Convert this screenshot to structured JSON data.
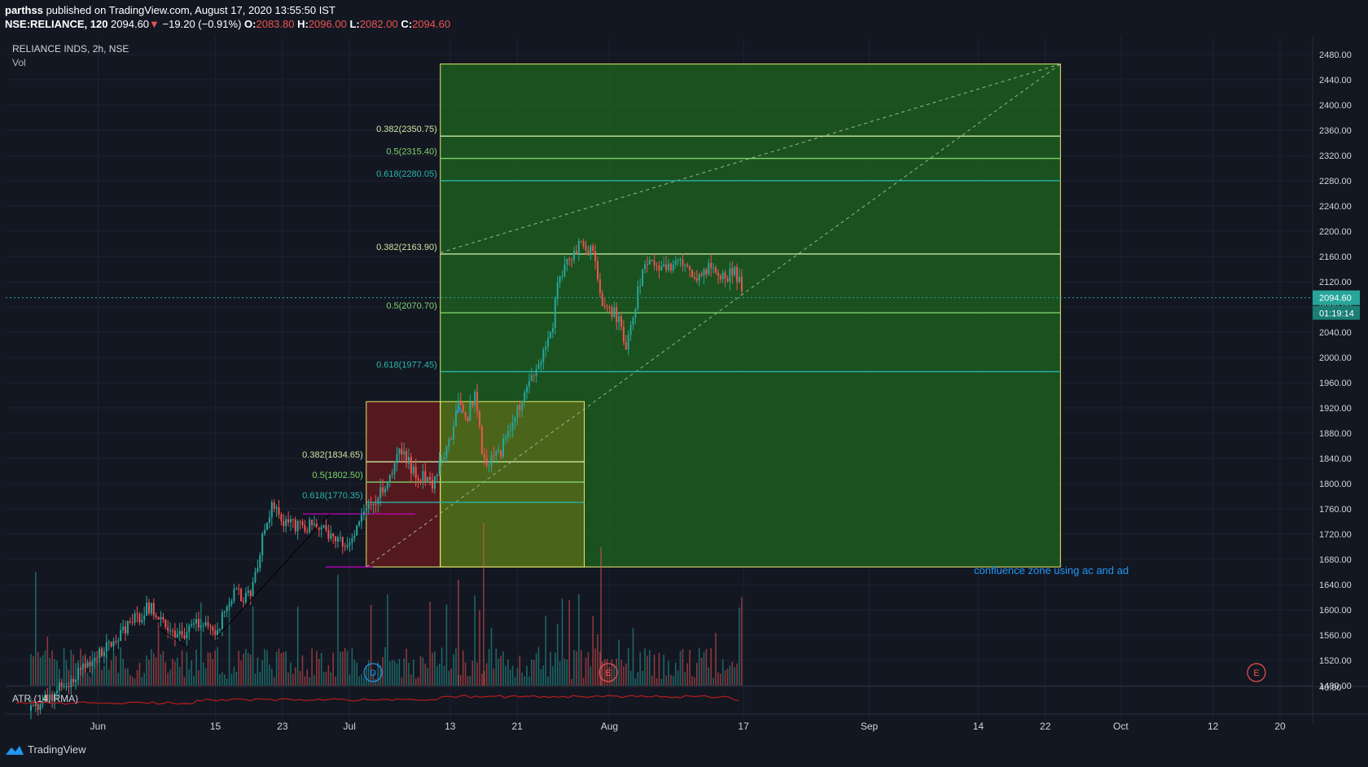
{
  "header": {
    "publisher_name": "parthss",
    "published_text": " published on TradingView.com, August 17, 2020 13:55:50 IST",
    "symbol": "NSE:RELIANCE, 120",
    "last": "2094.60",
    "arrow": "▼",
    "change": "−19.20 (−0.91%)",
    "o_label": "O:",
    "o_val": "2083.80",
    "h_label": "H:",
    "h_val": "2096.00",
    "l_label": "L:",
    "l_val": "2082.00",
    "c_label": "C:",
    "c_val": "2094.60"
  },
  "pane": {
    "title": "RELIANCE INDS, 2h, NSE",
    "volume_label": "Vol",
    "atr_label": "ATR (14, RMA)"
  },
  "brand": {
    "name": "TradingView",
    "icon": "tradingview-logo-icon"
  },
  "colors": {
    "background": "#131722",
    "grid": "#1e2230",
    "up": "#26a69a",
    "down": "#ef5350",
    "box_green": "#1e6b1e",
    "box_red": "#6b1b1f",
    "box_border": "#e8ec6a",
    "fib_382": "#c8e6a0",
    "fib_5": "#7ed36a",
    "fib_618": "#2bb5a8",
    "price_label": "#26a69a",
    "note": "#2196f3",
    "atr_line": "#b71c1c",
    "magenta": "#d500d5"
  },
  "chart_data": {
    "type": "candlestick",
    "symbol": "NSE:RELIANCE",
    "interval": "2h",
    "y_axis": {
      "ticks": [
        "2480.00",
        "2440.00",
        "2400.00",
        "2360.00",
        "2320.00",
        "2280.00",
        "2240.00",
        "2200.00",
        "2160.00",
        "2120.00",
        "2080.00",
        "2040.00",
        "2000.00",
        "1960.00",
        "1920.00",
        "1880.00",
        "1840.00",
        "1800.00",
        "1760.00",
        "1720.00",
        "1680.00",
        "1640.00",
        "1600.00",
        "1560.00",
        "1520.00",
        "1480.00"
      ],
      "range": [
        1480,
        2480
      ]
    },
    "atr_axis_label": "40.00",
    "x_axis": {
      "labels": [
        "Jun",
        "15",
        "23",
        "Jul",
        "13",
        "21",
        "Aug",
        "17",
        "Sep",
        "14",
        "22",
        "Oct",
        "12",
        "20"
      ]
    },
    "current_price": "2094.60",
    "countdown": "01:19:14",
    "price_path": [
      {
        "date": "2020-05-24",
        "close": 1440
      },
      {
        "date": "2020-05-28",
        "close": 1480
      },
      {
        "date": "2020-06-01",
        "close": 1530
      },
      {
        "date": "2020-06-04",
        "close": 1565
      },
      {
        "date": "2020-06-07",
        "close": 1605
      },
      {
        "date": "2020-06-09",
        "close": 1580
      },
      {
        "date": "2020-06-11",
        "close": 1555
      },
      {
        "date": "2020-06-13",
        "close": 1580
      },
      {
        "date": "2020-06-15",
        "close": 1565
      },
      {
        "date": "2020-06-17",
        "close": 1625
      },
      {
        "date": "2020-06-19",
        "close": 1620
      },
      {
        "date": "2020-06-20",
        "close": 1665
      },
      {
        "date": "2020-06-21",
        "close": 1740
      },
      {
        "date": "2020-06-22",
        "close": 1770
      },
      {
        "date": "2020-06-23",
        "close": 1745
      },
      {
        "date": "2020-06-25",
        "close": 1730
      },
      {
        "date": "2020-06-27",
        "close": 1735
      },
      {
        "date": "2020-06-29",
        "close": 1720
      },
      {
        "date": "2020-07-01",
        "close": 1705
      },
      {
        "date": "2020-07-03",
        "close": 1760
      },
      {
        "date": "2020-07-05",
        "close": 1790
      },
      {
        "date": "2020-07-07",
        "close": 1850
      },
      {
        "date": "2020-07-09",
        "close": 1815
      },
      {
        "date": "2020-07-11",
        "close": 1800
      },
      {
        "date": "2020-07-13",
        "close": 1870
      },
      {
        "date": "2020-07-14",
        "close": 1930
      },
      {
        "date": "2020-07-15",
        "close": 1905
      },
      {
        "date": "2020-07-16",
        "close": 1940
      },
      {
        "date": "2020-07-17",
        "close": 1835
      },
      {
        "date": "2020-07-19",
        "close": 1850
      },
      {
        "date": "2020-07-21",
        "close": 1915
      },
      {
        "date": "2020-07-23",
        "close": 1970
      },
      {
        "date": "2020-07-25",
        "close": 2030
      },
      {
        "date": "2020-07-26",
        "close": 2130
      },
      {
        "date": "2020-07-28",
        "close": 2175
      },
      {
        "date": "2020-07-30",
        "close": 2170
      },
      {
        "date": "2020-07-31",
        "close": 2090
      },
      {
        "date": "2020-08-02",
        "close": 2065
      },
      {
        "date": "2020-08-03",
        "close": 2010
      },
      {
        "date": "2020-08-04",
        "close": 2070
      },
      {
        "date": "2020-08-05",
        "close": 2150
      },
      {
        "date": "2020-08-07",
        "close": 2135
      },
      {
        "date": "2020-08-09",
        "close": 2150
      },
      {
        "date": "2020-08-11",
        "close": 2130
      },
      {
        "date": "2020-08-13",
        "close": 2140
      },
      {
        "date": "2020-08-15",
        "close": 2125
      },
      {
        "date": "2020-08-16",
        "close": 2140
      },
      {
        "date": "2020-08-17",
        "close": 2094.6
      }
    ],
    "fib_levels": [
      {
        "label": "0.382(2350.75)",
        "ratio": "0.382",
        "price": 2350.75
      },
      {
        "label": "0.5(2315.40)",
        "ratio": "0.5",
        "price": 2315.4
      },
      {
        "label": "0.618(2280.05)",
        "ratio": "0.618",
        "price": 2280.05
      },
      {
        "label": "0.382(2163.90)",
        "ratio": "0.382",
        "price": 2163.9
      },
      {
        "label": "0.5(2070.70)",
        "ratio": "0.5",
        "price": 2070.7
      },
      {
        "label": "0.618(1977.45)",
        "ratio": "0.618",
        "price": 1977.45
      },
      {
        "label": "0.382(1834.65)",
        "ratio": "0.382",
        "price": 1834.65
      },
      {
        "label": "0.5(1802.50)",
        "ratio": "0.5",
        "price": 1802.5
      },
      {
        "label": "0.618(1770.35)",
        "ratio": "0.618",
        "price": 1770.35
      }
    ],
    "annotations": [
      {
        "text": "confluence zone using ac and ad"
      },
      {
        "text": "A"
      },
      {
        "text": "D"
      },
      {
        "text": "E"
      },
      {
        "text": "E"
      }
    ],
    "grid": true
  }
}
